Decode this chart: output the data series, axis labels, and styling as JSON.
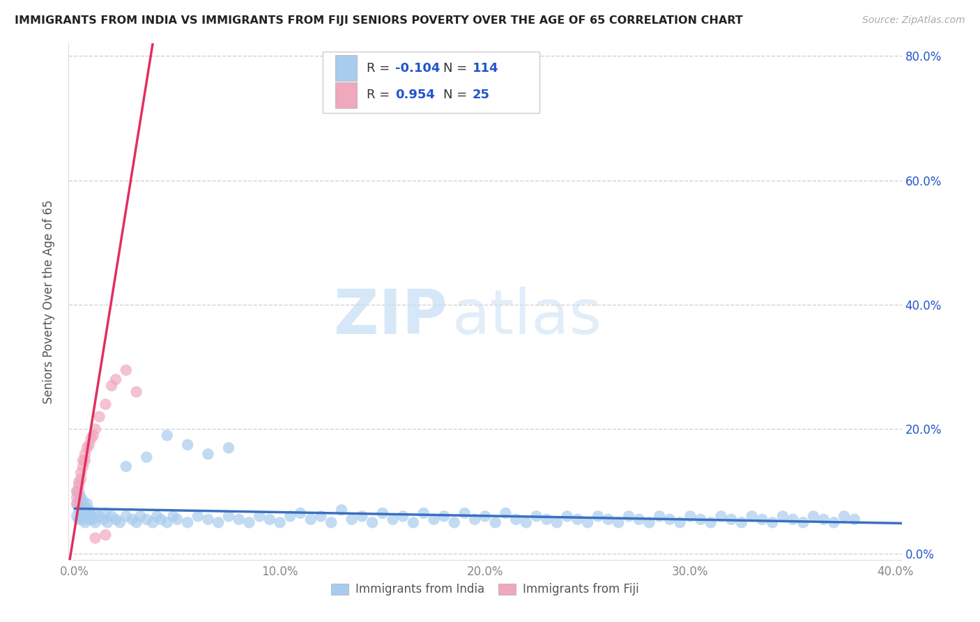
{
  "title": "IMMIGRANTS FROM INDIA VS IMMIGRANTS FROM FIJI SENIORS POVERTY OVER THE AGE OF 65 CORRELATION CHART",
  "source": "Source: ZipAtlas.com",
  "ylabel": "Seniors Poverty Over the Age of 65",
  "xlim": [
    -0.003,
    0.403
  ],
  "ylim": [
    -0.01,
    0.82
  ],
  "xticks": [
    0.0,
    0.1,
    0.2,
    0.3,
    0.4
  ],
  "yticks": [
    0.0,
    0.2,
    0.4,
    0.6,
    0.8
  ],
  "xtick_labels": [
    "0.0%",
    "10.0%",
    "20.0%",
    "30.0%",
    "40.0%"
  ],
  "ytick_labels": [
    "0.0%",
    "20.0%",
    "40.0%",
    "60.0%",
    "80.0%"
  ],
  "india_color": "#a8ccee",
  "fiji_color": "#f0a8bc",
  "india_line_color": "#3a70c0",
  "fiji_line_color": "#e03060",
  "india_R": -0.104,
  "india_N": 114,
  "fiji_R": 0.954,
  "fiji_N": 25,
  "legend_R_color": "#2255cc",
  "legend_label_india": "Immigrants from India",
  "legend_label_fiji": "Immigrants from Fiji",
  "watermark_zip": "ZIP",
  "watermark_atlas": "atlas",
  "background_color": "#ffffff",
  "grid_color": "#cccccc",
  "india_x": [
    0.001,
    0.001,
    0.001,
    0.002,
    0.002,
    0.002,
    0.002,
    0.003,
    0.003,
    0.003,
    0.004,
    0.004,
    0.004,
    0.005,
    0.005,
    0.005,
    0.006,
    0.006,
    0.007,
    0.007,
    0.008,
    0.009,
    0.01,
    0.01,
    0.012,
    0.014,
    0.015,
    0.016,
    0.018,
    0.02,
    0.022,
    0.025,
    0.028,
    0.03,
    0.032,
    0.035,
    0.038,
    0.04,
    0.042,
    0.045,
    0.048,
    0.05,
    0.055,
    0.06,
    0.065,
    0.07,
    0.075,
    0.08,
    0.085,
    0.09,
    0.095,
    0.1,
    0.105,
    0.11,
    0.115,
    0.12,
    0.125,
    0.13,
    0.135,
    0.14,
    0.145,
    0.15,
    0.155,
    0.16,
    0.165,
    0.17,
    0.175,
    0.18,
    0.185,
    0.19,
    0.195,
    0.2,
    0.205,
    0.21,
    0.215,
    0.22,
    0.225,
    0.23,
    0.235,
    0.24,
    0.245,
    0.25,
    0.255,
    0.26,
    0.265,
    0.27,
    0.275,
    0.28,
    0.285,
    0.29,
    0.295,
    0.3,
    0.305,
    0.31,
    0.315,
    0.32,
    0.325,
    0.33,
    0.335,
    0.34,
    0.345,
    0.35,
    0.355,
    0.36,
    0.365,
    0.37,
    0.375,
    0.38,
    0.025,
    0.035,
    0.045,
    0.055,
    0.065,
    0.075
  ],
  "india_y": [
    0.06,
    0.08,
    0.1,
    0.055,
    0.07,
    0.085,
    0.095,
    0.06,
    0.075,
    0.09,
    0.055,
    0.07,
    0.085,
    0.06,
    0.075,
    0.05,
    0.065,
    0.08,
    0.055,
    0.07,
    0.06,
    0.055,
    0.065,
    0.05,
    0.06,
    0.055,
    0.065,
    0.05,
    0.06,
    0.055,
    0.05,
    0.06,
    0.055,
    0.05,
    0.06,
    0.055,
    0.05,
    0.06,
    0.055,
    0.05,
    0.06,
    0.055,
    0.05,
    0.06,
    0.055,
    0.05,
    0.06,
    0.055,
    0.05,
    0.06,
    0.055,
    0.05,
    0.06,
    0.065,
    0.055,
    0.06,
    0.05,
    0.07,
    0.055,
    0.06,
    0.05,
    0.065,
    0.055,
    0.06,
    0.05,
    0.065,
    0.055,
    0.06,
    0.05,
    0.065,
    0.055,
    0.06,
    0.05,
    0.065,
    0.055,
    0.05,
    0.06,
    0.055,
    0.05,
    0.06,
    0.055,
    0.05,
    0.06,
    0.055,
    0.05,
    0.06,
    0.055,
    0.05,
    0.06,
    0.055,
    0.05,
    0.06,
    0.055,
    0.05,
    0.06,
    0.055,
    0.05,
    0.06,
    0.055,
    0.05,
    0.06,
    0.055,
    0.05,
    0.06,
    0.055,
    0.05,
    0.06,
    0.055,
    0.14,
    0.155,
    0.19,
    0.175,
    0.16,
    0.17
  ],
  "fiji_x": [
    0.001,
    0.001,
    0.001,
    0.002,
    0.002,
    0.002,
    0.003,
    0.003,
    0.004,
    0.004,
    0.005,
    0.005,
    0.006,
    0.007,
    0.008,
    0.009,
    0.01,
    0.012,
    0.015,
    0.018,
    0.02,
    0.025,
    0.03,
    0.015,
    0.01
  ],
  "fiji_y": [
    0.08,
    0.09,
    0.1,
    0.1,
    0.11,
    0.115,
    0.12,
    0.13,
    0.14,
    0.15,
    0.15,
    0.16,
    0.17,
    0.175,
    0.185,
    0.19,
    0.2,
    0.22,
    0.24,
    0.27,
    0.28,
    0.295,
    0.26,
    0.03,
    0.025
  ]
}
